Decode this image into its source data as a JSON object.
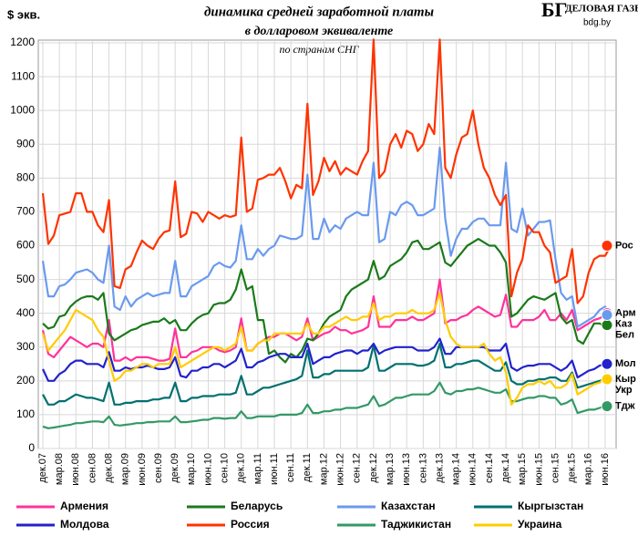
{
  "chart_data": {
    "type": "line",
    "title": "динамика  средней заработной платы",
    "subtitle": "в долларовом эквиваленте",
    "note": "по странам СНГ",
    "y_label": "$ экв.",
    "brand": "ДЕЛОВАЯ ГАЗЕТА",
    "brand_logo": "БГ",
    "brand_site": "bdg.by",
    "ylim": [
      0,
      1200
    ],
    "yticks": [
      0,
      100,
      200,
      300,
      400,
      500,
      600,
      700,
      800,
      900,
      1000,
      1100,
      1200
    ],
    "grid": true,
    "categories": [
      "дек.07",
      null,
      null,
      "мар.08",
      null,
      null,
      "июн.08",
      null,
      null,
      "сен.08",
      null,
      null,
      "дек.08",
      null,
      null,
      "мар.09",
      null,
      null,
      "июн.09",
      null,
      null,
      "сен.09",
      null,
      null,
      "дек.09",
      null,
      null,
      "мар.10",
      null,
      null,
      "июн.10",
      null,
      null,
      "сен.10",
      null,
      null,
      "дек.10",
      null,
      null,
      "мар.11",
      null,
      null,
      "июн.11",
      null,
      null,
      "сен.11",
      null,
      null,
      "дек.11",
      null,
      null,
      "мар.12",
      null,
      null,
      "июн.12",
      null,
      null,
      "сен.12",
      null,
      null,
      "дек.12",
      null,
      null,
      "мар.13",
      null,
      null,
      "июн.13",
      null,
      null,
      "сен.13",
      null,
      null,
      "дек.13",
      null,
      null,
      "мар.14",
      null,
      null,
      "июн.14",
      null,
      null,
      "сен.14",
      null,
      null,
      "дек.14",
      null,
      null,
      "мар.15",
      null,
      null,
      "июн.15",
      null,
      null,
      "сен.15",
      null,
      null,
      "дек.15",
      null,
      null,
      "мар.16",
      null,
      null,
      "июн.16",
      null
    ],
    "series": [
      {
        "name": "Армения",
        "short": "Арм",
        "color": "#ff3399",
        "values": [
          350,
          280,
          270,
          290,
          310,
          330,
          320,
          310,
          300,
          310,
          310,
          300,
          380,
          260,
          260,
          270,
          260,
          270,
          270,
          270,
          265,
          260,
          260,
          265,
          355,
          270,
          270,
          285,
          290,
          300,
          300,
          300,
          290,
          285,
          290,
          300,
          385,
          290,
          290,
          310,
          320,
          330,
          330,
          340,
          340,
          330,
          320,
          330,
          385,
          320,
          330,
          340,
          345,
          360,
          350,
          350,
          340,
          345,
          350,
          360,
          450,
          360,
          360,
          360,
          380,
          380,
          380,
          390,
          380,
          380,
          390,
          400,
          500,
          370,
          380,
          380,
          390,
          395,
          410,
          420,
          410,
          400,
          390,
          395,
          455,
          360,
          360,
          380,
          380,
          380,
          390,
          410,
          380,
          380,
          400,
          380,
          410,
          350,
          360,
          370,
          380,
          385,
          395,
          400
        ]
      },
      {
        "name": "Беларусь",
        "short": "Бел",
        "color": "#1a7a1a",
        "values": [
          370,
          355,
          360,
          390,
          395,
          420,
          435,
          445,
          450,
          450,
          440,
          460,
          340,
          320,
          330,
          340,
          350,
          355,
          365,
          370,
          375,
          375,
          385,
          370,
          380,
          350,
          350,
          370,
          385,
          395,
          400,
          425,
          430,
          430,
          440,
          470,
          530,
          470,
          480,
          380,
          380,
          280,
          290,
          270,
          255,
          280,
          270,
          290,
          325,
          320,
          340,
          370,
          390,
          400,
          410,
          450,
          470,
          480,
          490,
          500,
          555,
          500,
          510,
          540,
          550,
          560,
          580,
          610,
          615,
          590,
          590,
          600,
          610,
          550,
          540,
          560,
          580,
          600,
          610,
          620,
          610,
          600,
          600,
          580,
          550,
          390,
          400,
          420,
          440,
          450,
          445,
          440,
          450,
          460,
          390,
          370,
          380,
          320,
          310,
          340,
          370,
          370,
          360,
          365
        ]
      },
      {
        "name": "Казахстан",
        "short": "Каз",
        "color": "#6a9aee",
        "values": [
          555,
          450,
          450,
          480,
          485,
          500,
          520,
          525,
          530,
          520,
          500,
          490,
          600,
          420,
          410,
          450,
          420,
          440,
          450,
          460,
          450,
          455,
          460,
          460,
          555,
          450,
          450,
          480,
          490,
          500,
          510,
          540,
          550,
          540,
          535,
          555,
          660,
          560,
          560,
          590,
          570,
          590,
          600,
          630,
          625,
          620,
          620,
          630,
          810,
          620,
          620,
          680,
          640,
          660,
          650,
          680,
          690,
          700,
          690,
          690,
          845,
          610,
          620,
          700,
          690,
          720,
          730,
          720,
          690,
          690,
          700,
          710,
          890,
          680,
          570,
          620,
          650,
          650,
          670,
          680,
          680,
          660,
          660,
          660,
          845,
          650,
          640,
          710,
          630,
          650,
          670,
          670,
          675,
          560,
          460,
          440,
          450,
          360,
          370,
          380,
          390,
          410,
          420,
          395
        ]
      },
      {
        "name": "Кыргызстан",
        "short": "Кыр",
        "color": "#007070",
        "values": [
          160,
          130,
          130,
          140,
          140,
          150,
          160,
          155,
          150,
          150,
          145,
          140,
          195,
          130,
          130,
          135,
          135,
          140,
          140,
          140,
          145,
          145,
          150,
          150,
          195,
          140,
          140,
          150,
          150,
          155,
          155,
          155,
          160,
          160,
          160,
          165,
          215,
          160,
          160,
          170,
          180,
          180,
          185,
          190,
          195,
          200,
          205,
          215,
          290,
          210,
          210,
          220,
          220,
          230,
          230,
          230,
          230,
          230,
          230,
          240,
          305,
          230,
          230,
          240,
          250,
          250,
          250,
          250,
          245,
          245,
          250,
          260,
          310,
          240,
          240,
          250,
          250,
          255,
          260,
          260,
          250,
          240,
          230,
          230,
          255,
          200,
          190,
          190,
          200,
          200,
          205,
          205,
          210,
          210,
          200,
          200,
          225,
          180,
          185,
          190,
          195,
          200,
          205,
          205
        ]
      },
      {
        "name": "Молдова",
        "short": "Мол",
        "color": "#2222cc",
        "values": [
          235,
          200,
          200,
          220,
          230,
          250,
          260,
          260,
          250,
          250,
          250,
          240,
          285,
          230,
          230,
          240,
          235,
          240,
          240,
          245,
          240,
          235,
          235,
          240,
          270,
          215,
          210,
          230,
          230,
          240,
          240,
          250,
          250,
          240,
          250,
          260,
          295,
          240,
          240,
          255,
          260,
          270,
          275,
          280,
          280,
          270,
          270,
          270,
          310,
          250,
          260,
          270,
          270,
          280,
          285,
          290,
          290,
          280,
          290,
          290,
          310,
          280,
          290,
          295,
          300,
          300,
          300,
          300,
          290,
          290,
          290,
          300,
          325,
          280,
          280,
          300,
          300,
          300,
          300,
          300,
          300,
          290,
          290,
          290,
          310,
          240,
          230,
          240,
          245,
          245,
          250,
          250,
          250,
          240,
          230,
          240,
          260,
          210,
          220,
          230,
          235,
          245,
          250,
          250
        ]
      },
      {
        "name": "Россия",
        "short": "Рос",
        "color": "#ff3300",
        "values": [
          755,
          605,
          630,
          690,
          695,
          700,
          755,
          755,
          700,
          700,
          660,
          640,
          735,
          480,
          475,
          530,
          540,
          580,
          615,
          600,
          590,
          620,
          640,
          645,
          790,
          625,
          635,
          700,
          695,
          670,
          700,
          690,
          680,
          690,
          685,
          690,
          920,
          700,
          710,
          795,
          800,
          810,
          810,
          830,
          790,
          740,
          780,
          770,
          1020,
          750,
          790,
          860,
          820,
          850,
          810,
          830,
          820,
          810,
          850,
          880,
          1210,
          800,
          820,
          900,
          930,
          890,
          940,
          930,
          880,
          900,
          960,
          930,
          1210,
          830,
          800,
          870,
          920,
          930,
          1000,
          900,
          830,
          800,
          750,
          720,
          750,
          450,
          520,
          560,
          660,
          640,
          640,
          600,
          580,
          490,
          500,
          510,
          590,
          430,
          450,
          520,
          560,
          570,
          570,
          600
        ]
      },
      {
        "name": "Таджикистан",
        "short": "Тдж",
        "color": "#339966",
        "values": [
          65,
          60,
          62,
          65,
          68,
          70,
          75,
          75,
          78,
          80,
          80,
          78,
          95,
          70,
          68,
          70,
          72,
          75,
          75,
          78,
          78,
          80,
          80,
          80,
          95,
          78,
          78,
          80,
          82,
          85,
          85,
          90,
          90,
          88,
          90,
          90,
          110,
          90,
          90,
          95,
          95,
          95,
          95,
          100,
          100,
          100,
          100,
          105,
          130,
          105,
          105,
          110,
          110,
          115,
          115,
          120,
          120,
          120,
          125,
          130,
          155,
          125,
          130,
          140,
          150,
          150,
          155,
          160,
          160,
          160,
          160,
          170,
          195,
          165,
          160,
          170,
          170,
          175,
          175,
          180,
          175,
          170,
          165,
          165,
          175,
          140,
          140,
          145,
          150,
          150,
          155,
          155,
          150,
          150,
          130,
          135,
          145,
          105,
          110,
          115,
          115,
          120,
          125,
          125
        ]
      },
      {
        "name": "Украина",
        "short": "Укр",
        "color": "#ffcc00",
        "values": [
          340,
          290,
          310,
          330,
          350,
          380,
          410,
          400,
          390,
          380,
          350,
          330,
          260,
          200,
          210,
          230,
          230,
          240,
          250,
          250,
          240,
          250,
          250,
          250,
          300,
          240,
          250,
          260,
          270,
          280,
          290,
          300,
          300,
          290,
          300,
          310,
          360,
          290,
          290,
          310,
          320,
          320,
          340,
          340,
          340,
          340,
          340,
          340,
          370,
          340,
          340,
          360,
          360,
          370,
          380,
          390,
          380,
          380,
          390,
          390,
          430,
          380,
          390,
          390,
          400,
          400,
          400,
          410,
          400,
          400,
          400,
          410,
          460,
          380,
          330,
          310,
          300,
          300,
          300,
          300,
          310,
          280,
          260,
          270,
          225,
          130,
          150,
          180,
          190,
          190,
          200,
          190,
          200,
          180,
          180,
          190,
          220,
          160,
          170,
          180,
          190,
          195,
          205,
          205
        ]
      }
    ]
  }
}
